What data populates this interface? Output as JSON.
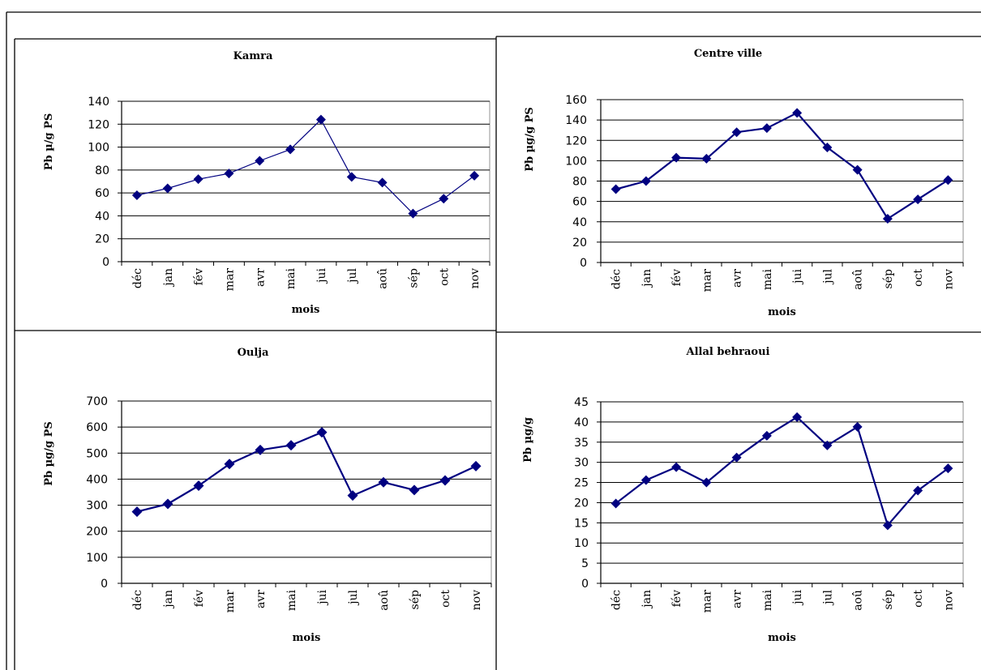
{
  "chart_data": [
    {
      "type": "line",
      "title": "Kamra",
      "ylabel": "Pb µ/g PS",
      "xlabel": "mois",
      "categories": [
        "déc",
        "jan",
        "fév",
        "mar",
        "avr",
        "mai",
        "jui",
        "jul",
        "aoû",
        "sép",
        "oct",
        "nov"
      ],
      "values": [
        58,
        64,
        72,
        77,
        88,
        98,
        124,
        74,
        69,
        42,
        55,
        75
      ],
      "ylim": [
        0,
        140
      ],
      "yticks": [
        0,
        20,
        40,
        60,
        80,
        100,
        120,
        140
      ],
      "grid": true,
      "color": "#000080"
    },
    {
      "type": "line",
      "title": "Centre ville",
      "ylabel": "Pb µg/g PS",
      "xlabel": "mois",
      "categories": [
        "déc",
        "jan",
        "fév",
        "mar",
        "avr",
        "mai",
        "jui",
        "jul",
        "aoû",
        "sép",
        "oct",
        "nov"
      ],
      "values": [
        72,
        80,
        103,
        102,
        128,
        132,
        147,
        113,
        91,
        43,
        62,
        81
      ],
      "ylim": [
        0,
        160
      ],
      "yticks": [
        0,
        20,
        40,
        60,
        80,
        100,
        120,
        140,
        160
      ],
      "grid": true,
      "color": "#000080"
    },
    {
      "type": "line",
      "title": "Oulja",
      "ylabel": "Pb µg/g PS",
      "xlabel": "mois",
      "categories": [
        "déc",
        "jan",
        "fév",
        "mar",
        "avr",
        "mai",
        "jui",
        "jul",
        "aoû",
        "sép",
        "oct",
        "nov"
      ],
      "values": [
        275,
        305,
        375,
        458,
        512,
        530,
        580,
        337,
        388,
        358,
        395,
        450
      ],
      "ylim": [
        0,
        700
      ],
      "yticks": [
        0,
        100,
        200,
        300,
        400,
        500,
        600,
        700
      ],
      "grid": true,
      "color": "#000080"
    },
    {
      "type": "line",
      "title": "Allal behraoui",
      "ylabel": "Pb µg/g",
      "xlabel": "mois",
      "categories": [
        "déc",
        "jan",
        "fév",
        "mar",
        "avr",
        "mai",
        "jui",
        "jul",
        "aoû",
        "sép",
        "oct",
        "nov"
      ],
      "values": [
        19.8,
        25.6,
        28.8,
        25.0,
        31.2,
        36.6,
        41.2,
        34.2,
        38.8,
        14.4,
        23.0,
        28.5
      ],
      "ylim": [
        0,
        45
      ],
      "yticks": [
        0,
        5,
        10,
        15,
        20,
        25,
        30,
        35,
        40,
        45
      ],
      "grid": true,
      "color": "#000080"
    }
  ]
}
